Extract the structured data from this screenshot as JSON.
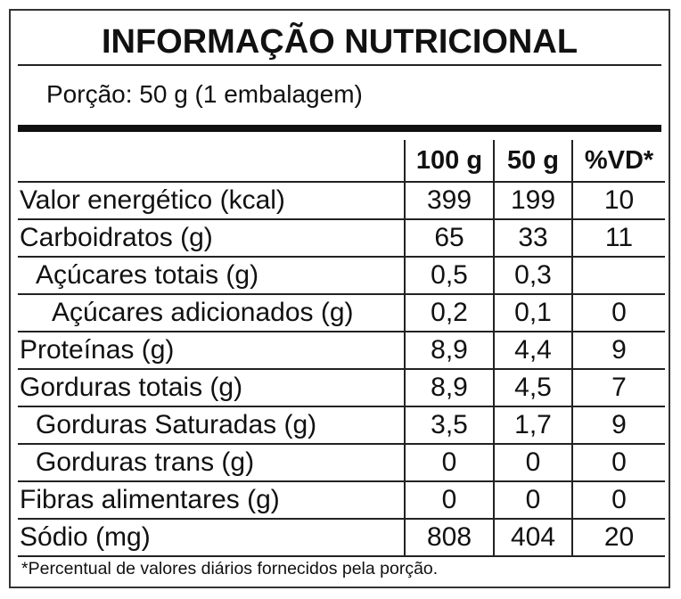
{
  "header": {
    "title": "INFORMAÇÃO NUTRICIONAL",
    "serving": "Porção: 50 g (1 embalagem)"
  },
  "table": {
    "columns": [
      "100 g",
      "50 g",
      "%VD*"
    ],
    "rows": [
      [
        "Valor energético (kcal)",
        "399",
        "199",
        "10"
      ],
      [
        "Carboidratos (g)",
        "65",
        "33",
        "11"
      ],
      [
        "Açúcares totais (g)",
        "0,5",
        "0,3",
        null
      ],
      [
        "Açúcares adicionados (g)",
        "0,2",
        "0,1",
        "0"
      ],
      [
        "Proteínas (g)",
        "8,9",
        "4,4",
        "9"
      ],
      [
        "Gorduras totais (g)",
        "8,9",
        "4,5",
        "7"
      ],
      [
        "Gorduras Saturadas (g)",
        "3,5",
        "1,7",
        "9"
      ],
      [
        "Gorduras trans (g)",
        "0",
        "0",
        "0"
      ],
      [
        "Fibras alimentares (g)",
        "0",
        "0",
        "0"
      ],
      [
        "Sódio (mg)",
        "808",
        "404",
        "20"
      ]
    ]
  },
  "footnote": "*Percentual de valores diários fornecidos pela porção."
}
